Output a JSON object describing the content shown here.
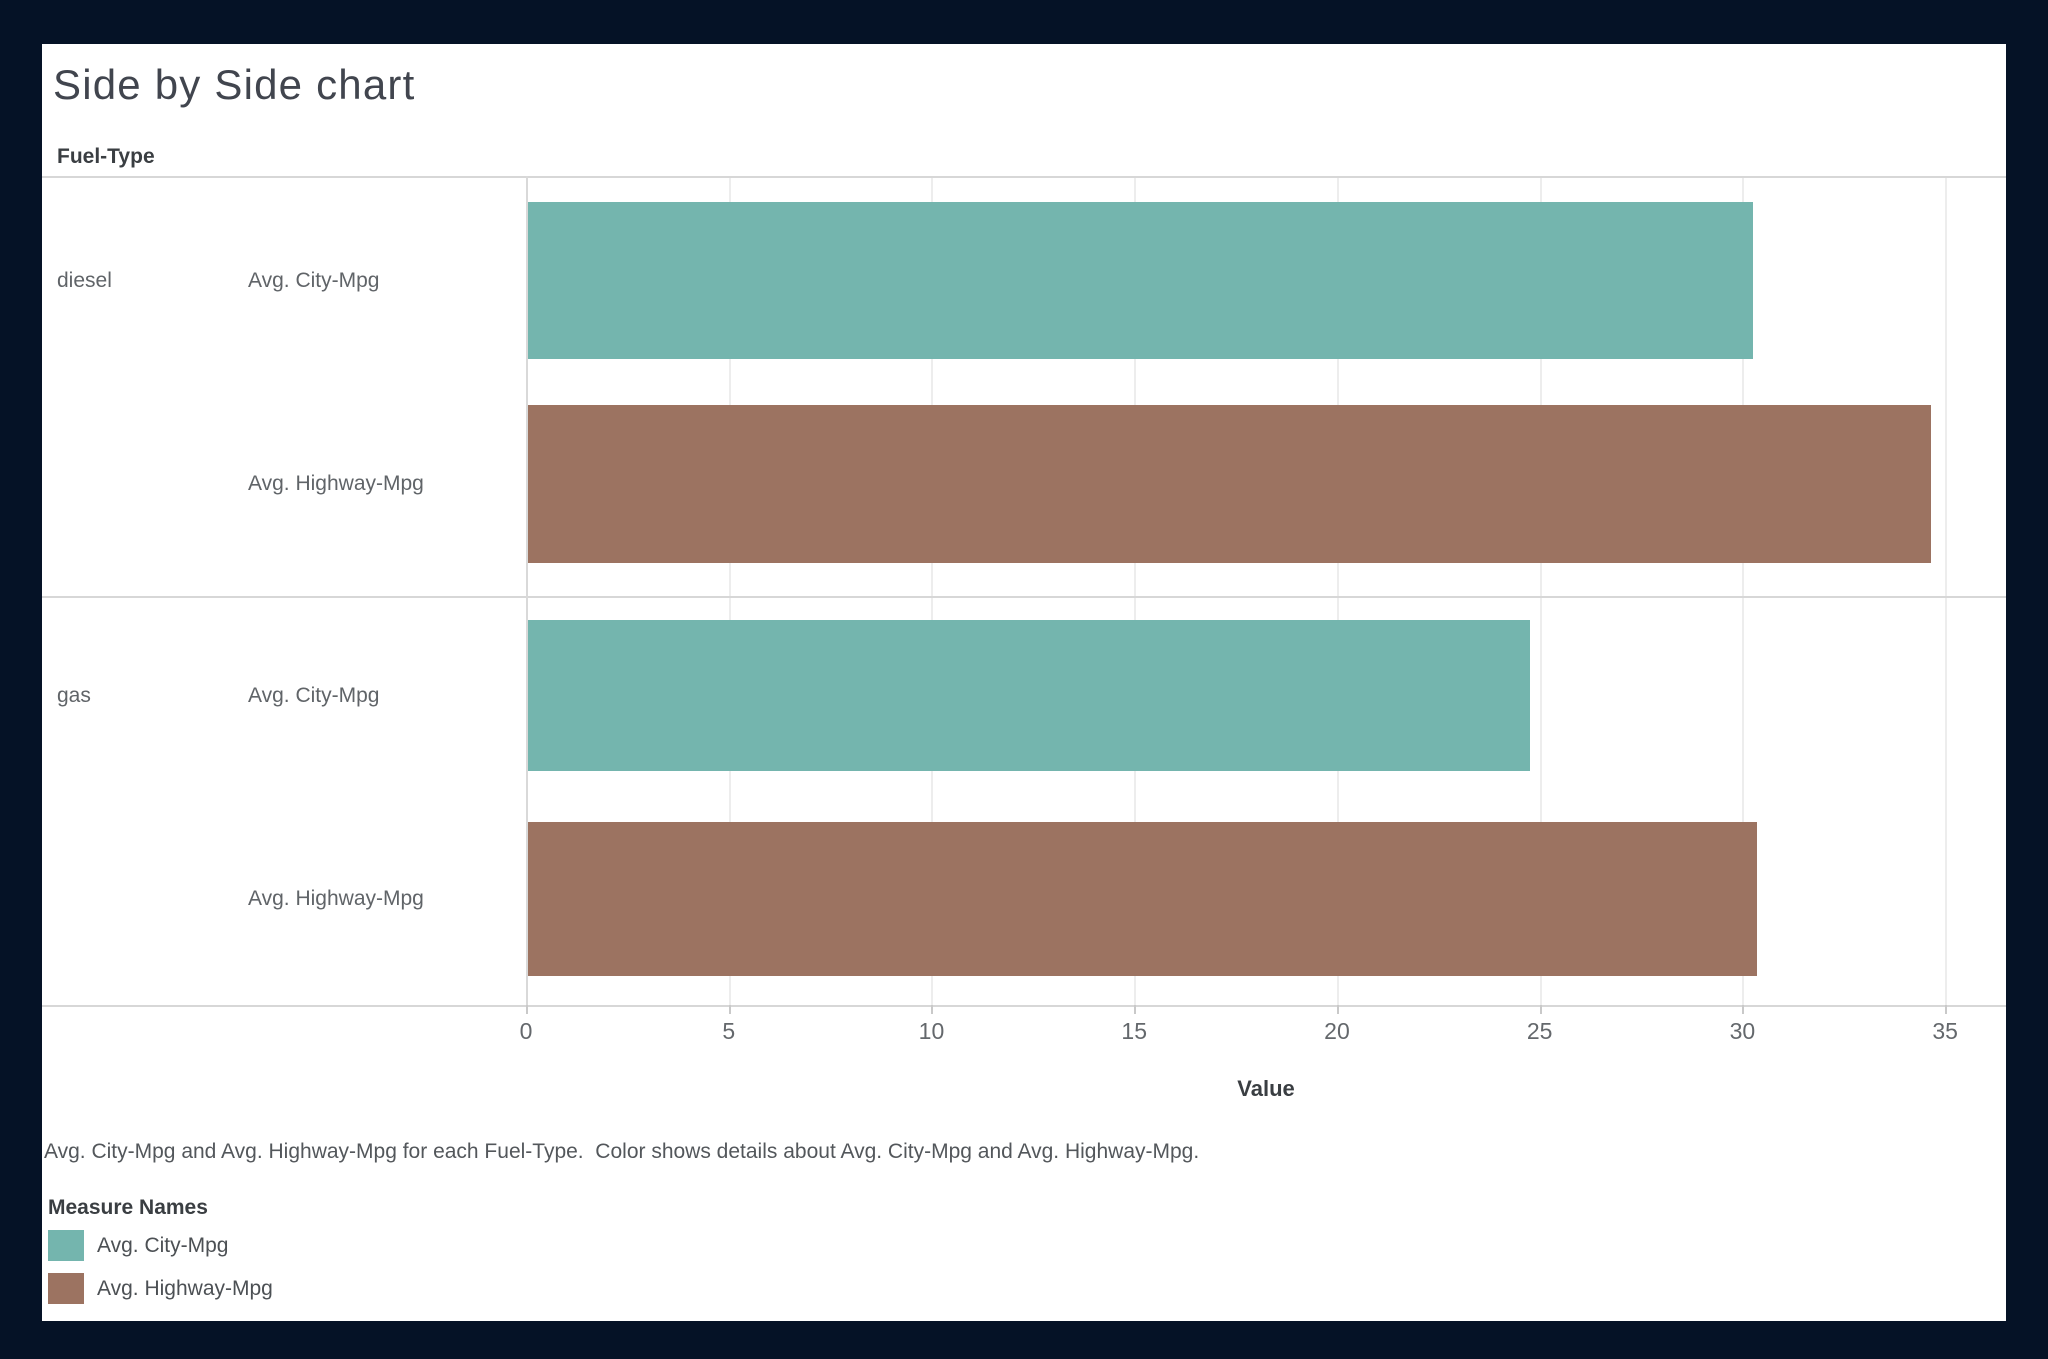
{
  "frame": {
    "background_color": "#051226",
    "card_color": "#ffffff"
  },
  "title": "Side by Side chart",
  "row_header": "Fuel-Type",
  "axis": {
    "label": "Value",
    "ticks": [
      0,
      5,
      10,
      15,
      20,
      25,
      30,
      35
    ],
    "max": 36.5
  },
  "caption": "Avg. City-Mpg and Avg. Highway-Mpg for each Fuel-Type.  Color shows details about Avg. City-Mpg and Avg. Highway-Mpg.",
  "legend": {
    "title": "Measure Names",
    "items": [
      {
        "label": "Avg. City-Mpg",
        "color": "#74b5ae"
      },
      {
        "label": "Avg. Highway-Mpg",
        "color": "#9c7361"
      }
    ]
  },
  "chart_data": {
    "type": "bar",
    "orientation": "horizontal",
    "title": "Side by Side chart",
    "xlabel": "Value",
    "ylabel": "Fuel-Type",
    "xlim": [
      0,
      36.5
    ],
    "x_ticks": [
      0,
      5,
      10,
      15,
      20,
      25,
      30,
      35
    ],
    "grid": true,
    "legend_position": "bottom-left",
    "legend_title": "Measure Names",
    "categories": [
      "diesel",
      "gas"
    ],
    "series": [
      {
        "name": "Avg. City-Mpg",
        "color": "#74b5ae",
        "values": [
          30.2,
          24.7
        ]
      },
      {
        "name": "Avg. Highway-Mpg",
        "color": "#9c7361",
        "values": [
          34.6,
          30.3
        ]
      }
    ]
  }
}
